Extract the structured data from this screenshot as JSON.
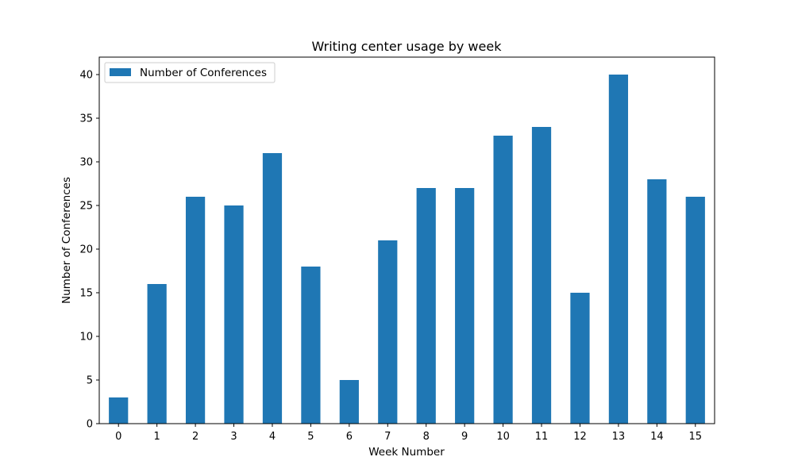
{
  "chart_data": {
    "type": "bar",
    "title": "Writing center usage by week",
    "xlabel": "Week Number",
    "ylabel": "Number of Conferences",
    "categories": [
      "0",
      "1",
      "2",
      "3",
      "4",
      "5",
      "6",
      "7",
      "8",
      "9",
      "10",
      "11",
      "12",
      "13",
      "14",
      "15"
    ],
    "series": [
      {
        "name": "Number of Conferences",
        "color": "#1f77b4",
        "values": [
          3,
          16,
          26,
          25,
          31,
          18,
          5,
          21,
          27,
          27,
          33,
          34,
          15,
          40,
          28,
          26
        ]
      }
    ],
    "ylim": [
      0,
      42
    ],
    "yticks": [
      0,
      5,
      10,
      15,
      20,
      25,
      30,
      35,
      40
    ],
    "grid": false,
    "legend_position": "top-left"
  }
}
